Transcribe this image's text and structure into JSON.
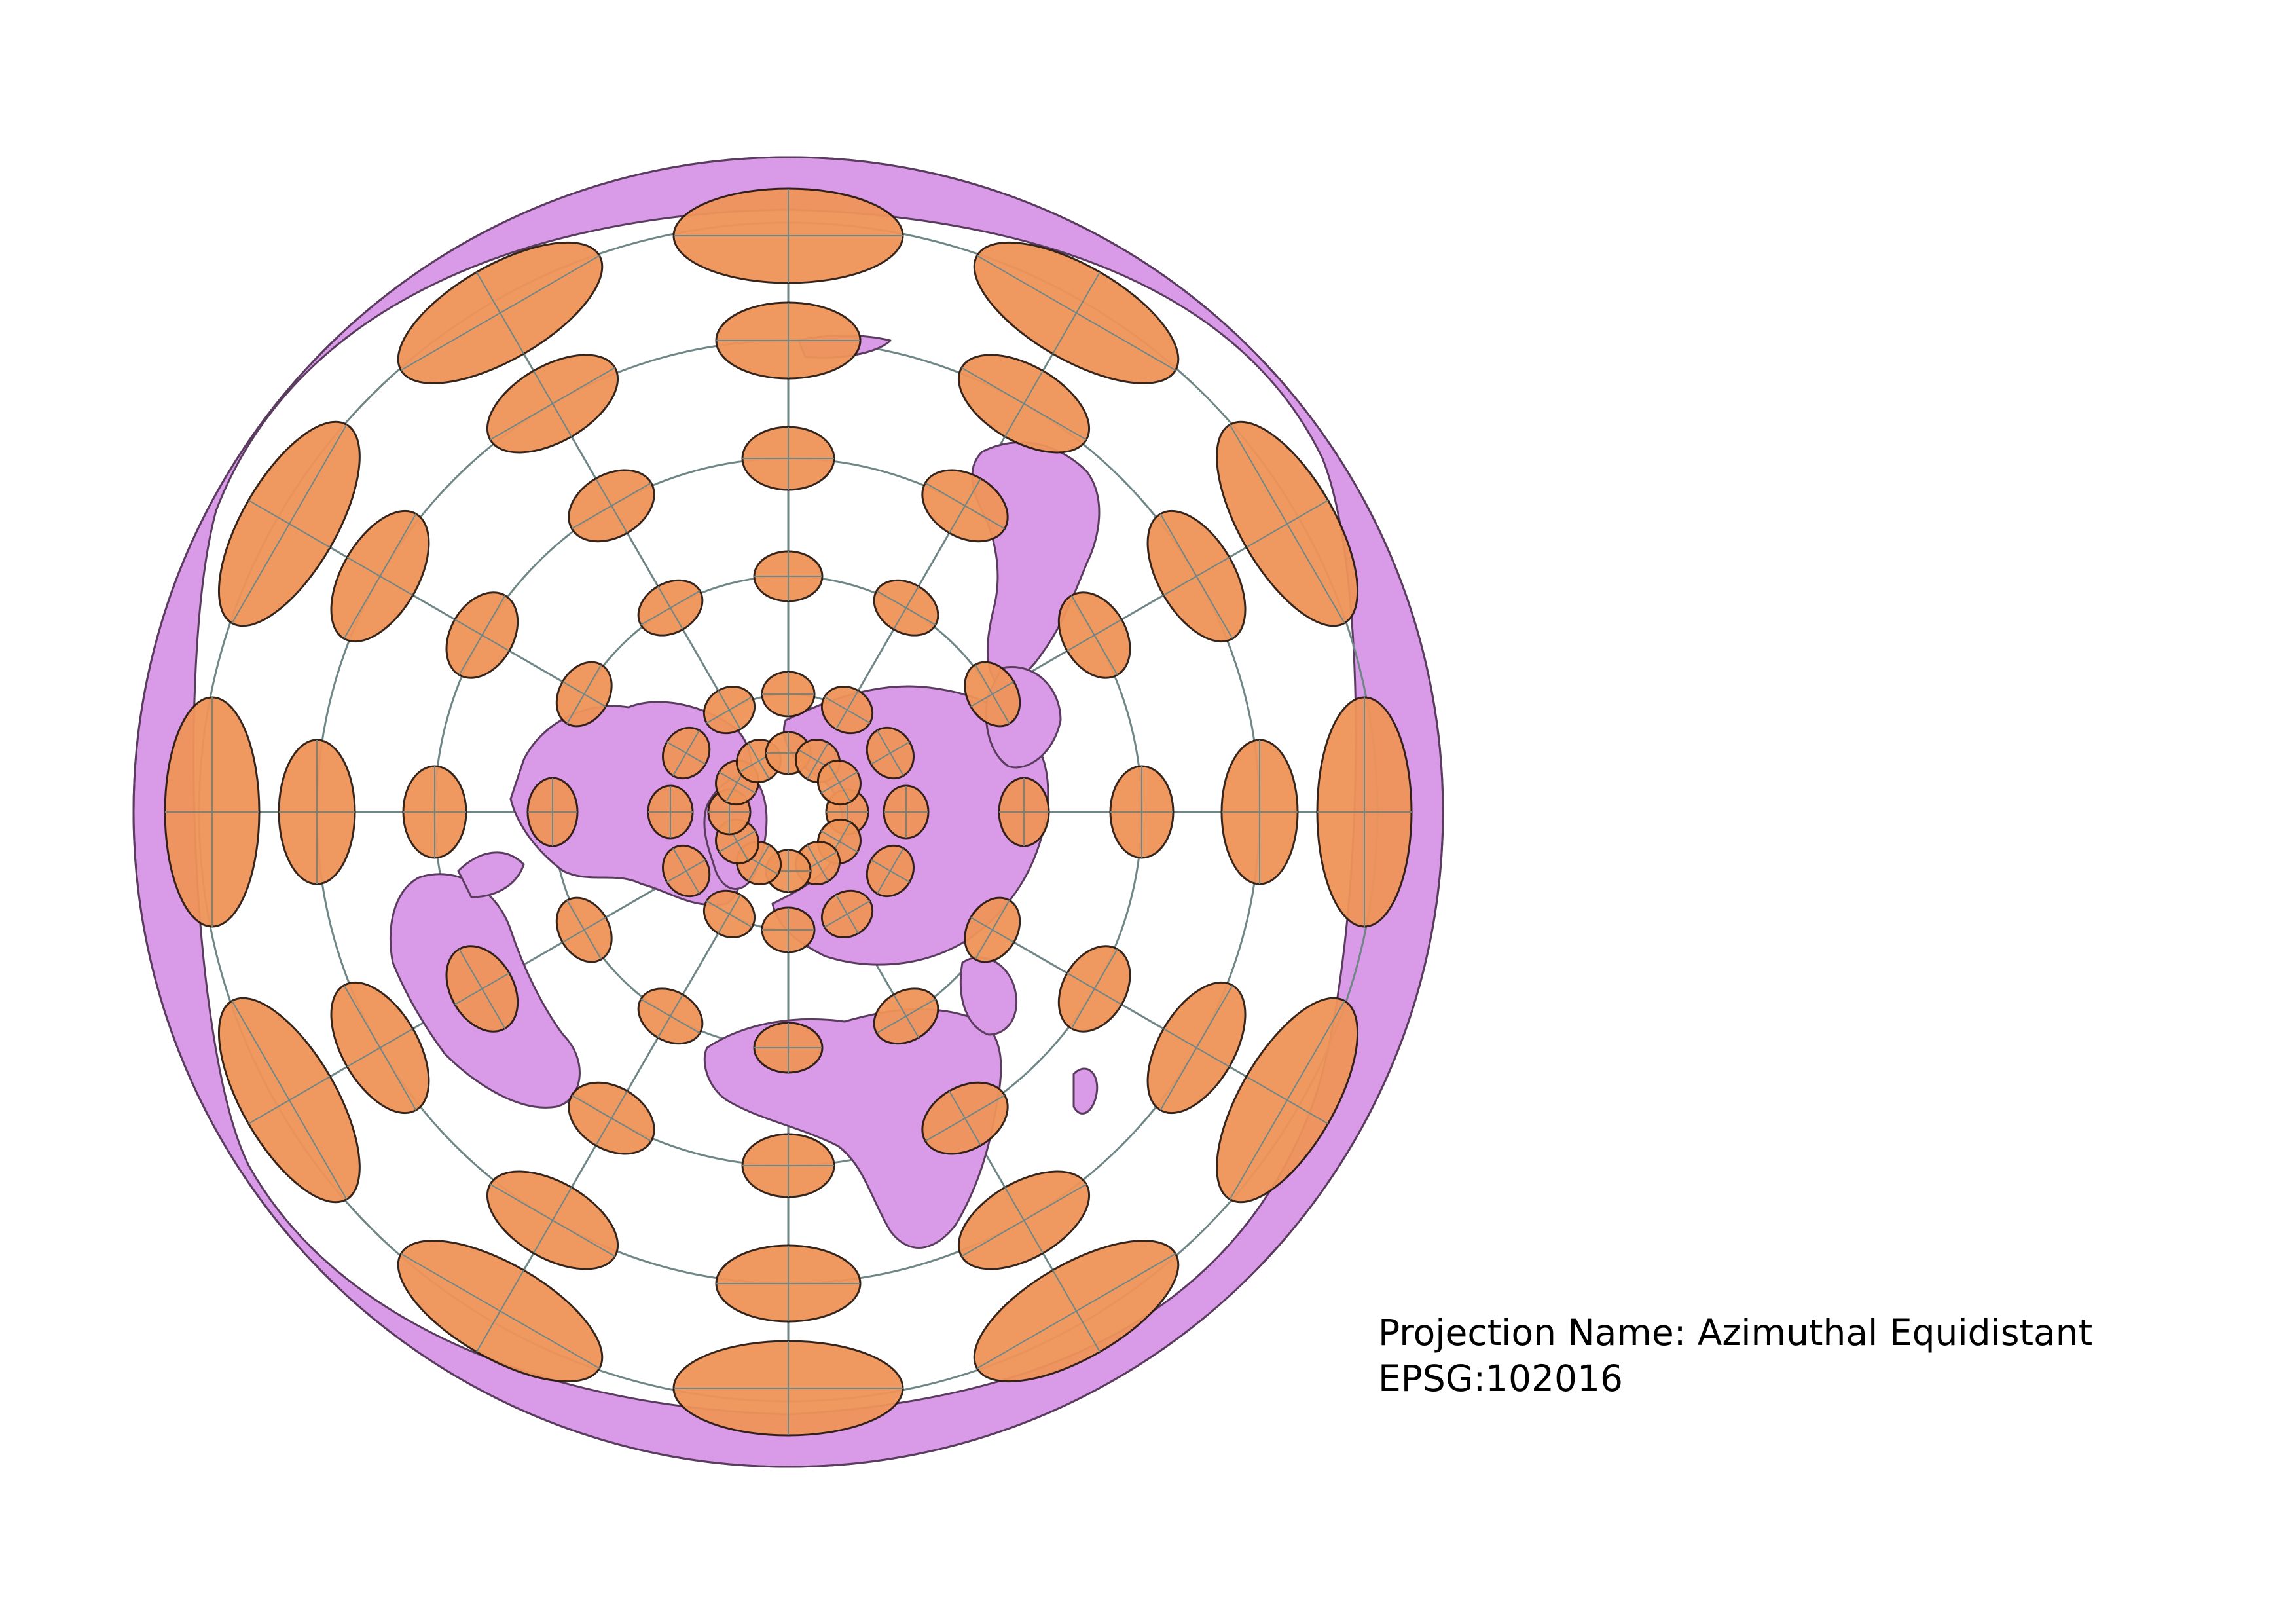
{
  "map": {
    "projection_label": "Projection Name: Azimuthal Equidistant",
    "epsg_label": "EPSG:102016",
    "colors": {
      "land": "#d99ae8",
      "land_stroke": "#5a3c5f",
      "ocean": "#ffffff",
      "graticule": "#6f8686",
      "indicatrix_fill": "#ef9459",
      "indicatrix_stroke": "#2b1a10"
    },
    "projection_center": "north-pole",
    "graticule": {
      "parallel_rings": 5,
      "meridian_spokes": 12
    },
    "tissot_indicatrices": {
      "rings": 6,
      "per_ring": 12
    }
  }
}
